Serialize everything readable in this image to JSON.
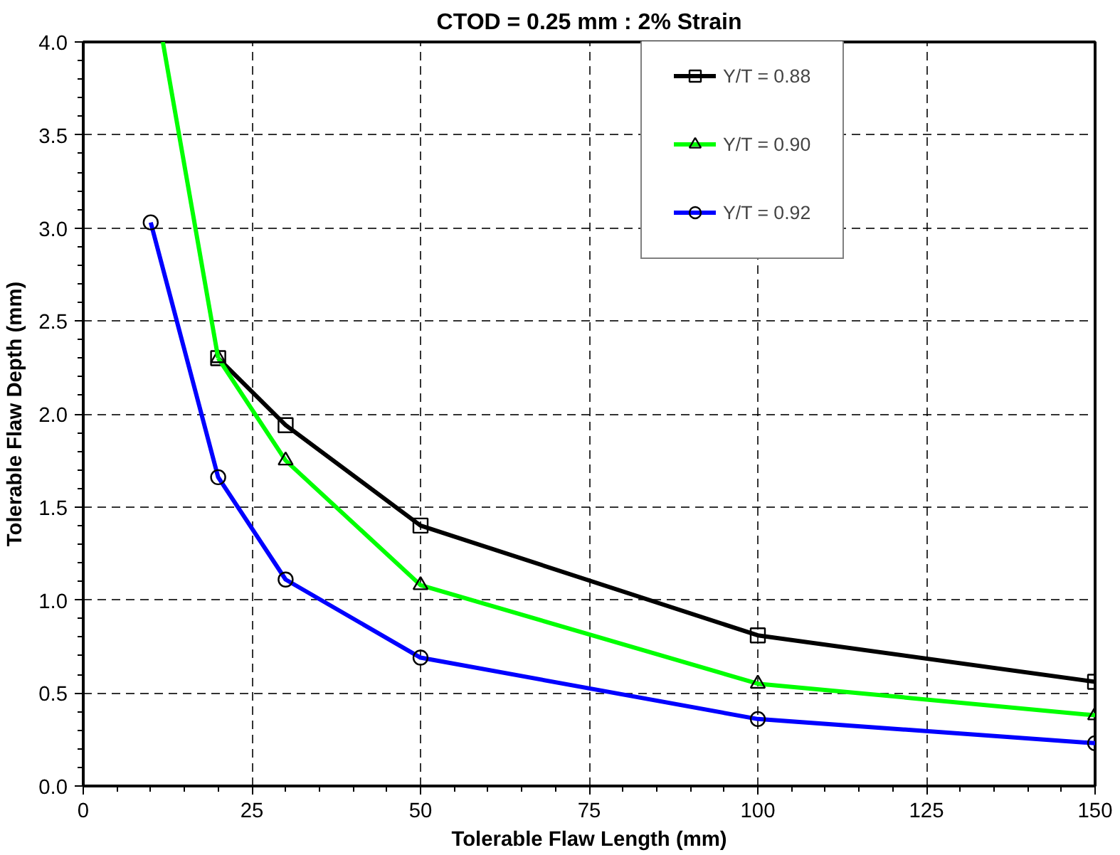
{
  "chart_data": {
    "type": "line",
    "title": "CTOD = 0.25 mm : 2% Strain",
    "xlabel": "Tolerable Flaw Length (mm)",
    "ylabel": "Tolerable Flaw Depth (mm)",
    "xlim": [
      0,
      150
    ],
    "ylim": [
      0,
      4
    ],
    "xticks": [
      0,
      25,
      50,
      75,
      100,
      125,
      150
    ],
    "yticks": [
      {
        "value": 0,
        "label": "0.0"
      },
      0.5,
      {
        "value": 1,
        "label": "1.0"
      },
      1.5,
      {
        "value": 2,
        "label": "2.0"
      },
      2.5,
      {
        "value": 3,
        "label": "3.0"
      },
      3.5,
      {
        "value": 4,
        "label": "4.0"
      }
    ],
    "grid": true,
    "legend": "top right",
    "line_style": "solid",
    "series": [
      {
        "name": "Y/T = 0.88",
        "color": "#000000",
        "marker": "square",
        "x": [
          20,
          30,
          50,
          100,
          150
        ],
        "values": [
          2.3,
          1.94,
          1.4,
          0.81,
          0.56
        ]
      },
      {
        "name": "Y/T = 0.90",
        "color": "#00ff00",
        "marker": "triangle",
        "x": [
          20,
          30,
          50,
          100,
          150
        ],
        "values": [
          2.3,
          1.75,
          1.08,
          0.55,
          0.38
        ]
      },
      {
        "name": "Y/T = 0.92",
        "color": "#0000ff",
        "marker": "circle",
        "x": [
          10,
          20,
          30,
          50,
          100,
          150
        ],
        "values": [
          3.03,
          1.66,
          1.11,
          0.69,
          0.36,
          0.23
        ]
      },
      {
        "color": "#00ff00",
        "marker": "none",
        "x": [
          11.8,
          20
        ],
        "values": [
          4.0,
          2.3
        ]
      }
    ]
  }
}
